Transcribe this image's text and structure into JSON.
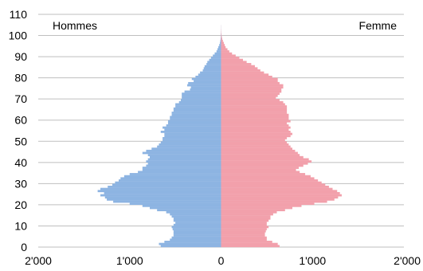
{
  "chart_data": {
    "type": "bar",
    "orientation": "horizontal",
    "subtype": "population-pyramid",
    "xlim": [
      -2000,
      2000
    ],
    "ylim": [
      0,
      110
    ],
    "x_ticks": [
      -2000,
      -1000,
      0,
      1000,
      2000
    ],
    "x_tick_labels": [
      "2'000",
      "1'000",
      "0",
      "1'000",
      "2'000"
    ],
    "y_ticks": [
      0,
      10,
      20,
      30,
      40,
      50,
      60,
      70,
      80,
      90,
      100,
      110
    ],
    "y_tick_labels": [
      "0",
      "10",
      "20",
      "30",
      "40",
      "50",
      "60",
      "70",
      "80",
      "90",
      "100",
      "110"
    ],
    "grid": "horizontal",
    "colors": {
      "left": "#8db4e2",
      "right": "#f2a0ab"
    },
    "series": [
      {
        "name": "Hommes",
        "ages": [
          0,
          1,
          2,
          3,
          4,
          5,
          6,
          7,
          8,
          9,
          10,
          11,
          12,
          13,
          14,
          15,
          16,
          17,
          18,
          19,
          20,
          21,
          22,
          23,
          24,
          25,
          26,
          27,
          28,
          29,
          30,
          31,
          32,
          33,
          34,
          35,
          36,
          37,
          38,
          39,
          40,
          41,
          42,
          43,
          44,
          45,
          46,
          47,
          48,
          49,
          50,
          51,
          52,
          53,
          54,
          55,
          56,
          57,
          58,
          59,
          60,
          61,
          62,
          63,
          64,
          65,
          66,
          67,
          68,
          69,
          70,
          71,
          72,
          73,
          74,
          75,
          76,
          77,
          78,
          79,
          80,
          81,
          82,
          83,
          84,
          85,
          86,
          87,
          88,
          89,
          90,
          91,
          92,
          93,
          94,
          95,
          96,
          97,
          98,
          99,
          100,
          101,
          102,
          103,
          104
        ],
        "values": [
          660,
          680,
          620,
          560,
          540,
          520,
          520,
          520,
          530,
          540,
          520,
          500,
          520,
          520,
          540,
          560,
          600,
          700,
          780,
          860,
          1000,
          1180,
          1250,
          1270,
          1320,
          1280,
          1350,
          1320,
          1240,
          1190,
          1160,
          1120,
          1100,
          1060,
          1000,
          910,
          860,
          860,
          820,
          800,
          820,
          800,
          780,
          800,
          860,
          820,
          760,
          700,
          680,
          660,
          640,
          640,
          620,
          620,
          660,
          620,
          640,
          600,
          580,
          580,
          560,
          560,
          540,
          540,
          520,
          520,
          500,
          500,
          460,
          440,
          430,
          430,
          430,
          400,
          340,
          330,
          370,
          360,
          300,
          320,
          280,
          250,
          230,
          200,
          190,
          180,
          160,
          150,
          130,
          110,
          90,
          70,
          50,
          40,
          30,
          20,
          12,
          8,
          5,
          3,
          2,
          1,
          1,
          1,
          1
        ]
      },
      {
        "name": "Femme",
        "ages": [
          0,
          1,
          2,
          3,
          4,
          5,
          6,
          7,
          8,
          9,
          10,
          11,
          12,
          13,
          14,
          15,
          16,
          17,
          18,
          19,
          20,
          21,
          22,
          23,
          24,
          25,
          26,
          27,
          28,
          29,
          30,
          31,
          32,
          33,
          34,
          35,
          36,
          37,
          38,
          39,
          40,
          41,
          42,
          43,
          44,
          45,
          46,
          47,
          48,
          49,
          50,
          51,
          52,
          53,
          54,
          55,
          56,
          57,
          58,
          59,
          60,
          61,
          62,
          63,
          64,
          65,
          66,
          67,
          68,
          69,
          70,
          71,
          72,
          73,
          74,
          75,
          76,
          77,
          78,
          79,
          80,
          81,
          82,
          83,
          84,
          85,
          86,
          87,
          88,
          89,
          90,
          91,
          92,
          93,
          94,
          95,
          96,
          97,
          98,
          99,
          100,
          101,
          102,
          103,
          104
        ],
        "values": [
          640,
          620,
          560,
          500,
          500,
          480,
          480,
          490,
          500,
          520,
          500,
          500,
          520,
          540,
          540,
          570,
          610,
          700,
          780,
          880,
          1020,
          1160,
          1240,
          1280,
          1320,
          1300,
          1270,
          1220,
          1180,
          1140,
          1100,
          1060,
          1020,
          980,
          920,
          860,
          820,
          850,
          900,
          950,
          990,
          960,
          900,
          860,
          840,
          810,
          780,
          760,
          740,
          720,
          700,
          720,
          760,
          780,
          760,
          740,
          760,
          740,
          720,
          760,
          740,
          740,
          740,
          720,
          720,
          720,
          720,
          700,
          680,
          640,
          600,
          620,
          640,
          660,
          660,
          680,
          680,
          640,
          620,
          620,
          560,
          520,
          470,
          430,
          400,
          370,
          330,
          280,
          240,
          200,
          160,
          120,
          90,
          70,
          50,
          40,
          30,
          20,
          12,
          8,
          5,
          3,
          2,
          1,
          1
        ]
      }
    ],
    "annotations": [
      {
        "text": "Hommes",
        "position": "top-left"
      },
      {
        "text": "Femme",
        "position": "top-right"
      }
    ]
  }
}
